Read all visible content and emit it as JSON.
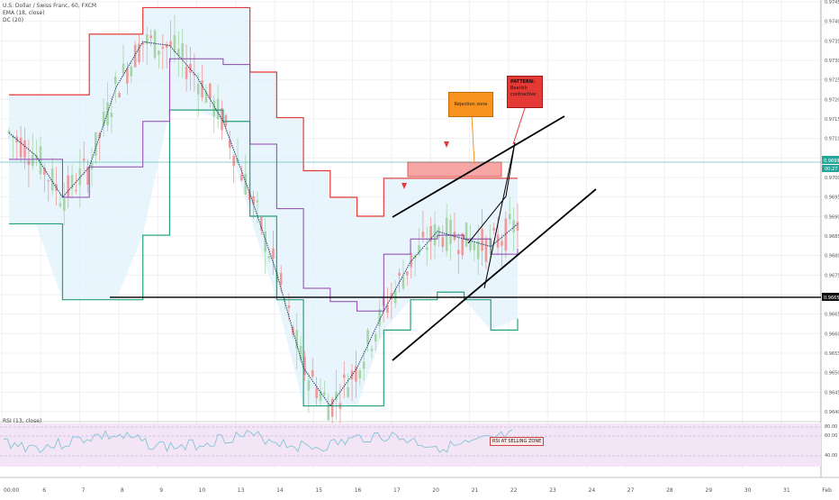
{
  "legend": {
    "symbol": "U.S. Dollar / Swiss Franc, 60, FXCM",
    "ema": "EMA (18, close)",
    "dc": "DC (20)"
  },
  "rsi_legend": "RSI (13, close)",
  "annotations": {
    "rejection": "Rejection zone",
    "pattern_title": "PATTERN:",
    "pattern_body": "Bearish contractive",
    "rsi_note": "RSI AT SELLING ZONE"
  },
  "price_labels": {
    "current": "0.96994",
    "current_small": "00:27",
    "support": "0.96654",
    "near": "0.96950"
  },
  "colors": {
    "upper_band": "#e53935",
    "lower_band": "#26a07a",
    "mid_band": "#8e44ad",
    "ema": "#1a3a6b",
    "band_fill": "#e3f2fd",
    "rsi_bg": "#f3e5f5",
    "rsi_line": "#80c6d6",
    "candle_up": "#a5d6a7",
    "candle_down": "#ef9a9a",
    "price_tag": "#26a69a",
    "support_tag": "#111111"
  },
  "chart_data": {
    "type": "line",
    "title": "",
    "symbol": "USDCHF",
    "timeframe": "60",
    "x_tick_labels": [
      "00:00",
      "6",
      "7",
      "8",
      "9",
      "10",
      "13",
      "14",
      "15",
      "16",
      "17",
      "20",
      "21",
      "22",
      "23",
      "24",
      "27",
      "28",
      "29",
      "30",
      "31",
      "Feb"
    ],
    "y_tick_labels": [
      "0.97450",
      "0.97400",
      "0.97350",
      "0.97300",
      "0.97250",
      "0.97200",
      "0.97150",
      "0.97100",
      "0.97050",
      "0.97000",
      "0.96950",
      "0.96900",
      "0.96850",
      "0.96800",
      "0.96750",
      "0.96700",
      "0.96650",
      "0.96600",
      "0.96550",
      "0.96500",
      "0.96450",
      "0.96400"
    ],
    "ylim": [
      0.9638,
      0.9747
    ],
    "series": [
      {
        "name": "Upper band",
        "values": [
          0.9722,
          0.9722,
          0.9722,
          0.9738,
          0.9738,
          0.9745,
          0.9745,
          0.9745,
          0.9745,
          0.9728,
          0.9716,
          0.9702,
          0.9695,
          0.969,
          0.97,
          0.97,
          0.97,
          0.97,
          0.97,
          0.97
        ]
      },
      {
        "name": "Lower band",
        "values": [
          0.9688,
          0.9688,
          0.9668,
          0.9668,
          0.9668,
          0.9685,
          0.9718,
          0.9718,
          0.9715,
          0.969,
          0.9668,
          0.964,
          0.964,
          0.964,
          0.966,
          0.9668,
          0.967,
          0.9668,
          0.966,
          0.9663
        ]
      },
      {
        "name": "EMA",
        "values": [
          0.9712,
          0.9706,
          0.9695,
          0.9703,
          0.9724,
          0.9736,
          0.9735,
          0.9727,
          0.9715,
          0.9696,
          0.9675,
          0.965,
          0.964,
          0.965,
          0.9665,
          0.9678,
          0.9686,
          0.9684,
          0.9682,
          0.9688
        ]
      }
    ],
    "support_level": 0.96654,
    "current_price": 0.96994,
    "rsi": {
      "levels": [
        70,
        30
      ],
      "tick_labels": [
        "80.00",
        "60.00",
        "40.00"
      ]
    }
  }
}
